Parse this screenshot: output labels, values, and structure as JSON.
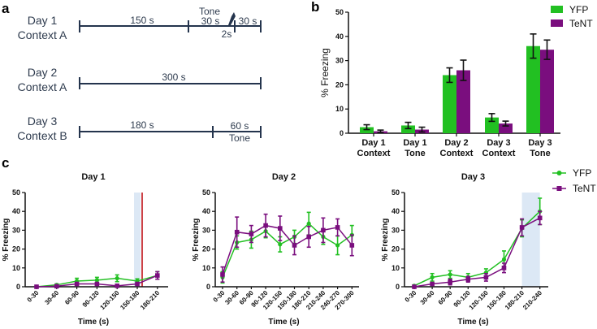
{
  "panels": {
    "a": "a",
    "b": "b",
    "c": "c"
  },
  "timeline": {
    "day1": {
      "day": "Day 1",
      "context": "Context A",
      "seg1": "150 s",
      "tone_label": "Tone",
      "seg2": "30 s",
      "shock": "2s",
      "seg3": "30 s",
      "shock_icon": "lightning-icon"
    },
    "day2": {
      "day": "Day 2",
      "context": "Context A",
      "seg1": "300 s"
    },
    "day3": {
      "day": "Day 3",
      "context": "Context B",
      "seg1": "180 s",
      "seg2": "60 s",
      "tone_label": "Tone"
    }
  },
  "colors": {
    "YFP": "#22c022",
    "TeNT": "#7a0e7e",
    "shade": "#dce8f5",
    "shock_line": "#c0141a",
    "timeline": "#24344d"
  },
  "chart_data": [
    {
      "type": "bar",
      "panel": "b",
      "ylabel": "% Freezing",
      "ylim": [
        0,
        50
      ],
      "yticks": [
        "0",
        "10",
        "20",
        "30",
        "40",
        "50"
      ],
      "categories": [
        [
          "Day 1",
          "Context"
        ],
        [
          "Day 1",
          "Tone"
        ],
        [
          "Day 2",
          "Context"
        ],
        [
          "Day 3",
          "Context"
        ],
        [
          "Day 3",
          "Tone"
        ]
      ],
      "legend": "top-right",
      "series": [
        {
          "name": "YFP",
          "values": [
            2.5,
            3.2,
            24,
            6.5,
            36
          ],
          "errors": [
            1.0,
            1.3,
            3.0,
            1.6,
            5.0
          ]
        },
        {
          "name": "TeNT",
          "values": [
            0.8,
            1.5,
            26,
            4.0,
            34.5
          ],
          "errors": [
            0.5,
            1.0,
            4.2,
            1.0,
            4.0
          ]
        }
      ]
    },
    {
      "type": "line",
      "panel": "c",
      "title": "Day 1",
      "xlabel": "Time (s)",
      "ylabel": "% Freezing",
      "ylim": [
        0,
        50
      ],
      "yticks": [
        "0",
        "10",
        "20",
        "30",
        "40",
        "50"
      ],
      "categories": [
        "0-30",
        "30-60",
        "60-90",
        "90-120",
        "120-150",
        "150-180",
        "180-210"
      ],
      "shade_category": "150-180",
      "shock_marker": true,
      "series": [
        {
          "name": "YFP",
          "values": [
            0,
            1,
            3,
            3.5,
            4.5,
            3,
            6
          ],
          "errors": [
            0.3,
            0.5,
            1.5,
            1.5,
            1.8,
            1.2,
            2
          ]
        },
        {
          "name": "TeNT",
          "values": [
            0,
            0.3,
            1.5,
            1.5,
            0.5,
            1.5,
            6
          ],
          "errors": [
            0.2,
            0.3,
            0.6,
            0.6,
            0.4,
            0.6,
            2
          ]
        }
      ]
    },
    {
      "type": "line",
      "panel": "c",
      "title": "Day 2",
      "xlabel": "Time (s)",
      "ylabel": "% Freezing",
      "ylim": [
        0,
        50
      ],
      "yticks": [
        "0",
        "10",
        "20",
        "30",
        "40",
        "50"
      ],
      "categories": [
        "0-30",
        "30-60",
        "60-90",
        "90-120",
        "120-150",
        "150-180",
        "180-210",
        "210-240",
        "240-270",
        "270-300"
      ],
      "series": [
        {
          "name": "YFP",
          "values": [
            5,
            23.5,
            25,
            29.5,
            22.5,
            26.5,
            33.5,
            26.5,
            22,
            27.5
          ],
          "errors": [
            3,
            3.5,
            4.5,
            3.5,
            4,
            3.5,
            6,
            4,
            5,
            5
          ]
        },
        {
          "name": "TeNT",
          "values": [
            6.5,
            29,
            28,
            32.5,
            31,
            22,
            26.5,
            30,
            31.5,
            22
          ],
          "errors": [
            4,
            8,
            4.5,
            6,
            6.5,
            5,
            5.5,
            6.5,
            4.5,
            5.5
          ]
        }
      ]
    },
    {
      "type": "line",
      "panel": "c",
      "title": "Day 3",
      "xlabel": "Time (s)",
      "ylabel": "% Freezing",
      "ylim": [
        0,
        50
      ],
      "yticks": [
        "0",
        "10",
        "20",
        "30",
        "40",
        "50"
      ],
      "categories": [
        "0-30",
        "30-60",
        "60-90",
        "90-120",
        "120-150",
        "150-180",
        "180-210",
        "210-240"
      ],
      "shade_range": [
        "180-210",
        "210-240"
      ],
      "legend": "top-right",
      "series": [
        {
          "name": "YFP",
          "values": [
            0.5,
            5,
            6.5,
            5,
            7.5,
            14.5,
            31,
            40
          ],
          "errors": [
            0.5,
            2,
            2,
            2,
            2,
            4.5,
            4.5,
            7
          ]
        },
        {
          "name": "TeNT",
          "values": [
            0,
            1.5,
            2.5,
            4,
            5,
            10,
            31.5,
            36.5
          ],
          "errors": [
            0.2,
            0.5,
            1.5,
            1.5,
            2,
            2.5,
            4.5,
            3.5
          ]
        }
      ]
    }
  ]
}
